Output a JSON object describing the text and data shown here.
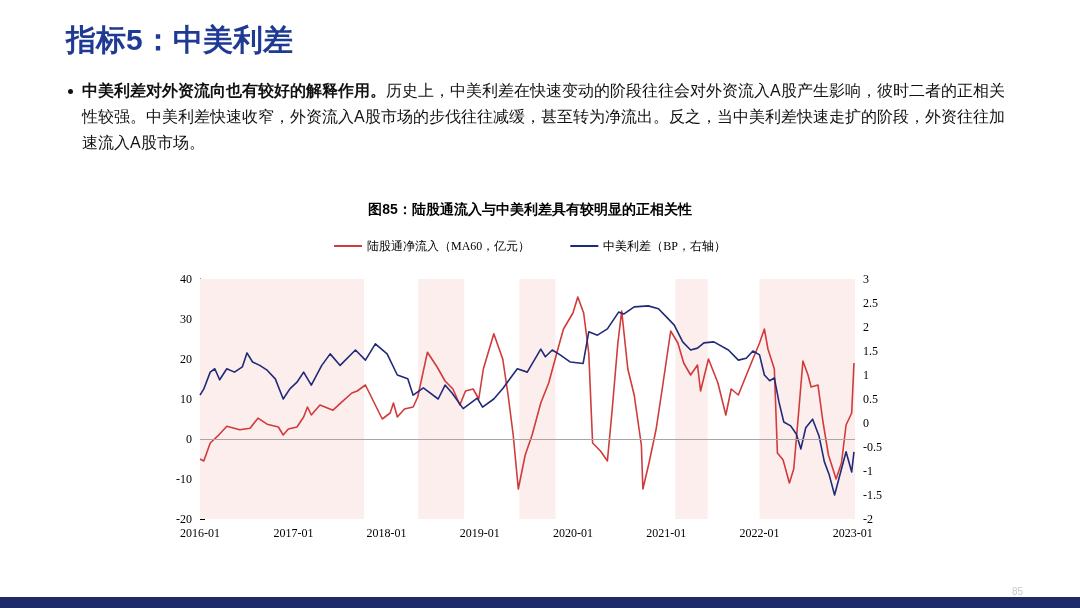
{
  "chart_data": {
    "type": "line",
    "title": "图85：陆股通流入与中美利差具有较明显的正相关性",
    "annotations": [
      "指标5：中美利差",
      "中美利差对外资流向也有较好的解释作用。",
      "历史上，中美利差在快速变动的阶段往往会对外资流入A股产生影响，彼时二者的正相关性较强。中美利差快速收窄，外资流入A股市场的步伐往往减缓，甚至转为净流出。反之，当中美利差快速走扩的阶段，外资往往加速流入A股市场。",
      "85"
    ],
    "legend": "top",
    "marker": "none",
    "grid": false,
    "xlim": [
      "2016-01-01",
      "2023-01-10"
    ],
    "xticks": [
      "2016-01",
      "2017-01",
      "2018-01",
      "2019-01",
      "2020-01",
      "2021-01",
      "2022-01",
      "2023-01"
    ],
    "ylim": [
      -20,
      40
    ],
    "yticks": [
      -20,
      -10,
      0,
      10,
      20,
      30,
      40
    ],
    "y2lim": [
      -2,
      3
    ],
    "y2ticks": [
      -2,
      -1.5,
      -1,
      -0.5,
      0,
      0.5,
      1,
      1.5,
      2,
      2.5,
      3
    ],
    "ref_lines": [
      {
        "axis": "y",
        "value": 0,
        "color": "#a6a6a6"
      }
    ],
    "bands": [
      {
        "axis": "x",
        "from": "2016-01-01",
        "to": "2017-10-05",
        "color": "#fdeeee"
      },
      {
        "axis": "x",
        "from": "2018-05-05",
        "to": "2018-11-01",
        "color": "#fdeeee"
      },
      {
        "axis": "x",
        "from": "2019-06-05",
        "to": "2019-10-25",
        "color": "#fdeeee"
      },
      {
        "axis": "x",
        "from": "2021-02-05",
        "to": "2021-06-12",
        "color": "#fdeeee"
      },
      {
        "axis": "x",
        "from": "2022-01-01",
        "to": "2023-01-10",
        "color": "#fdeeee"
      }
    ],
    "series": [
      {
        "name": "陆股通净流入（MA60，亿元）",
        "color": "#d13b3b",
        "x": [
          "2016-01-01",
          "2016-01-16",
          "2016-02-10",
          "2016-03-10",
          "2016-04-15",
          "2016-06-05",
          "2016-07-15",
          "2016-08-15",
          "2016-09-20",
          "2016-11-03",
          "2016-11-22",
          "2016-12-12",
          "2017-01-15",
          "2017-02-10",
          "2017-02-25",
          "2017-03-12",
          "2017-04-15",
          "2017-06-05",
          "2017-07-10",
          "2017-08-18",
          "2017-09-08",
          "2017-10-10",
          "2017-11-10",
          "2017-12-15",
          "2018-01-15",
          "2018-01-28",
          "2018-02-12",
          "2018-03-12",
          "2018-04-15",
          "2018-05-03",
          "2018-06-10",
          "2018-07-18",
          "2018-08-18",
          "2018-09-18",
          "2018-10-15",
          "2018-11-06",
          "2018-12-06",
          "2018-12-28",
          "2019-01-15",
          "2019-02-25",
          "2019-04-01",
          "2019-04-22",
          "2019-05-12",
          "2019-06-01",
          "2019-06-28",
          "2019-07-25",
          "2019-08-28",
          "2019-09-28",
          "2019-11-03",
          "2019-11-25",
          "2020-01-01",
          "2020-01-20",
          "2020-02-12",
          "2020-03-03",
          "2020-03-18",
          "2020-04-18",
          "2020-05-15",
          "2020-06-03",
          "2020-06-25",
          "2020-07-10",
          "2020-08-03",
          "2020-08-28",
          "2020-09-25",
          "2020-10-01",
          "2020-10-25",
          "2020-11-22",
          "2020-12-18",
          "2021-01-18",
          "2021-02-15",
          "2021-03-10",
          "2021-04-06",
          "2021-05-03",
          "2021-05-15",
          "2021-06-15",
          "2021-07-22",
          "2021-08-22",
          "2021-09-12",
          "2021-10-10",
          "2021-11-01",
          "2021-12-06",
          "2022-01-01",
          "2022-01-20",
          "2022-02-03",
          "2022-02-28",
          "2022-03-12",
          "2022-04-03",
          "2022-04-28",
          "2022-05-15",
          "2022-06-03",
          "2022-06-20",
          "2022-07-10",
          "2022-07-22",
          "2022-08-18",
          "2022-09-06",
          "2022-09-28",
          "2022-10-28",
          "2022-11-18",
          "2022-12-06",
          "2022-12-28",
          "2023-01-06"
        ],
        "values": [
          -5,
          -5.5,
          -1,
          0.7,
          3.2,
          2.3,
          2.7,
          5.2,
          3.7,
          3,
          1,
          2.5,
          3,
          5.5,
          8,
          6,
          8.5,
          7.2,
          9.3,
          11.5,
          12,
          13.5,
          9.5,
          5,
          6.5,
          9,
          5.5,
          7.5,
          8,
          10.5,
          21.7,
          18,
          14.5,
          12.5,
          8.5,
          12,
          12.5,
          10,
          17.5,
          26.3,
          20,
          11,
          1,
          -12.5,
          -4,
          1,
          9,
          14,
          22.5,
          27.5,
          31.5,
          35.5,
          31.5,
          21.5,
          -1,
          -3,
          -5.5,
          7.5,
          24,
          32,
          17.5,
          11,
          -1.5,
          -12.5,
          -6,
          2.5,
          13.5,
          27,
          24,
          19,
          16,
          18.5,
          12,
          20,
          14,
          6,
          12.5,
          11,
          14.5,
          20,
          24,
          27.5,
          22.5,
          17.5,
          -3.5,
          -5.2,
          -11,
          -7.5,
          6.5,
          19.5,
          16,
          13,
          13.5,
          4.5,
          -4,
          -10,
          -6,
          3.5,
          6.5,
          19
        ]
      },
      {
        "name": "中美利差（BP，右轴）",
        "color": "#1f2a78",
        "axis": "y2",
        "x": [
          "2016-01-01",
          "2016-01-16",
          "2016-02-10",
          "2016-02-28",
          "2016-03-18",
          "2016-04-15",
          "2016-05-15",
          "2016-06-15",
          "2016-07-03",
          "2016-07-25",
          "2016-08-22",
          "2016-09-20",
          "2016-10-22",
          "2016-11-22",
          "2016-12-18",
          "2017-01-15",
          "2017-02-10",
          "2017-03-12",
          "2017-04-22",
          "2017-05-25",
          "2017-07-03",
          "2017-09-01",
          "2017-10-10",
          "2017-11-18",
          "2018-01-03",
          "2018-02-12",
          "2018-03-25",
          "2018-04-15",
          "2018-05-25",
          "2018-07-22",
          "2018-08-18",
          "2018-09-15",
          "2018-10-28",
          "2018-12-22",
          "2019-01-12",
          "2019-02-25",
          "2019-04-03",
          "2019-05-28",
          "2019-07-06",
          "2019-08-28",
          "2019-09-15",
          "2019-10-12",
          "2019-11-12",
          "2019-12-22",
          "2020-02-10",
          "2020-03-03",
          "2020-04-06",
          "2020-05-15",
          "2020-06-28",
          "2020-07-18",
          "2020-08-28",
          "2020-10-22",
          "2020-12-01",
          "2021-01-01",
          "2021-02-01",
          "2021-03-06",
          "2021-04-06",
          "2021-05-03",
          "2021-05-28",
          "2021-07-06",
          "2021-09-01",
          "2021-10-10",
          "2021-11-10",
          "2021-12-06",
          "2022-01-01",
          "2022-01-20",
          "2022-02-10",
          "2022-02-28",
          "2022-03-18",
          "2022-04-06",
          "2022-05-03",
          "2022-05-25",
          "2022-06-12",
          "2022-07-01",
          "2022-07-28",
          "2022-08-22",
          "2022-09-12",
          "2022-10-01",
          "2022-10-22",
          "2022-11-18",
          "2022-12-06",
          "2022-12-28",
          "2023-01-06"
        ],
        "values": [
          0.58,
          0.71,
          1.06,
          1.13,
          0.9,
          1.13,
          1.06,
          1.17,
          1.46,
          1.27,
          1.2,
          1.1,
          0.92,
          0.5,
          0.71,
          0.85,
          1.06,
          0.79,
          1.2,
          1.44,
          1.2,
          1.52,
          1.31,
          1.65,
          1.44,
          1.0,
          0.92,
          0.58,
          0.73,
          0.5,
          0.79,
          0.62,
          0.3,
          0.52,
          0.33,
          0.5,
          0.73,
          1.13,
          1.06,
          1.54,
          1.38,
          1.52,
          1.42,
          1.27,
          1.24,
          1.9,
          1.83,
          1.96,
          2.31,
          2.27,
          2.42,
          2.44,
          2.38,
          2.21,
          2.04,
          1.69,
          1.52,
          1.56,
          1.67,
          1.69,
          1.52,
          1.31,
          1.35,
          1.5,
          1.42,
          1.0,
          0.88,
          0.94,
          0.44,
          0.02,
          -0.06,
          -0.23,
          -0.54,
          -0.1,
          0.08,
          -0.27,
          -0.81,
          -1.08,
          -1.5,
          -0.96,
          -0.6,
          -1.02,
          -0.6
        ]
      }
    ]
  }
}
